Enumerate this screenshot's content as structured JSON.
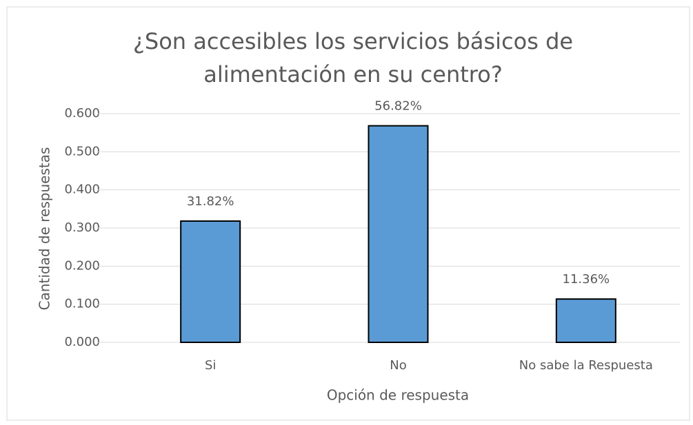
{
  "chart_data": {
    "type": "bar",
    "title": [
      "¿Son accesibles los servicios básicos de",
      "alimentación en su centro?"
    ],
    "x_label": "Opción de respuesta",
    "y_label": "Cantidad de respuestas",
    "categories": [
      "Si",
      "No",
      "No sabe la Respuesta"
    ],
    "values": [
      0.3182,
      0.5682,
      0.1136
    ],
    "value_labels": [
      "31.82%",
      "56.82%",
      "11.36%"
    ],
    "color": "#5b9bd5",
    "ylim": [
      0,
      0.6
    ],
    "yticks": [
      {
        "value": 0,
        "label": "0.000"
      },
      {
        "value": 0.1,
        "label": "0.100"
      },
      {
        "value": 0.2,
        "label": "0.200"
      },
      {
        "value": 0.3,
        "label": "0.300"
      },
      {
        "value": 0.4,
        "label": "0.400"
      },
      {
        "value": 0.5,
        "label": "0.500"
      },
      {
        "value": 0.6,
        "label": "0.600"
      }
    ],
    "grid": true
  }
}
